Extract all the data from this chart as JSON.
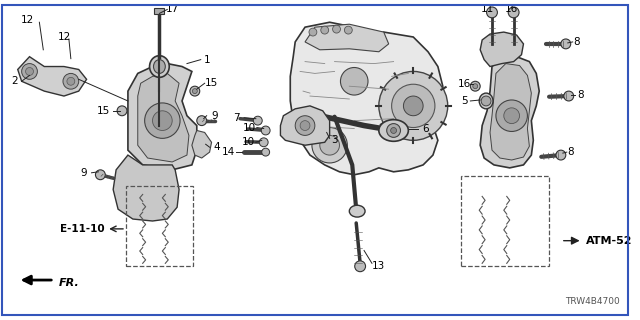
{
  "background_color": "#ffffff",
  "border_color": "#3355bb",
  "fig_width": 6.4,
  "fig_height": 3.2,
  "dpi": 100,
  "diagram_code": "TRW4B4700",
  "ref_left": "E-11-10",
  "ref_right": "ATM-52",
  "fr_label": "FR.",
  "text_color": "#000000",
  "line_color": "#222222",
  "gray_fill": "#d8d8d8",
  "dark_gray": "#555555",
  "mid_gray": "#888888"
}
